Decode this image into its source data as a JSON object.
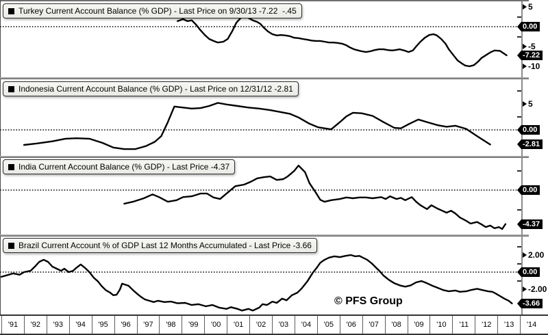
{
  "watermark": "© PFS Group",
  "colors": {
    "line": "#000000",
    "zero_line": "#000000",
    "badge_bg": "#000000",
    "badge_text": "#ffffff",
    "legend_bg": "#f0f0ec",
    "axis_line": "#8c8c8c"
  },
  "x_axis": {
    "years": [
      "'91",
      "'92",
      "'93",
      "'94",
      "'95",
      "'96",
      "'97",
      "'98",
      "'99",
      "'00",
      "'01",
      "'02",
      "'03",
      "'04",
      "'05",
      "'06",
      "'07",
      "'08",
      "'09",
      "'10",
      "'11",
      "'12",
      "'13",
      "'14"
    ]
  },
  "chart_data": [
    {
      "type": "line",
      "country": "Turkey",
      "legend": "Turkey Current Account Balance (% GDP) - Last Price on 9/30/13 -7.22  -.45",
      "last_price": -7.22,
      "last_price_date": "9/30/13",
      "ylabel": "% GDP",
      "axis_right": {
        "majors": [
          {
            "value": 5,
            "label": "5"
          },
          {
            "value": -5,
            "label": "-5"
          },
          {
            "value": -10,
            "label": "-10"
          }
        ],
        "minors": [
          2.5,
          -2.5
        ],
        "badges": [
          {
            "value": 0,
            "label": "0.00"
          },
          {
            "value": -7.22,
            "label": "-7.22"
          }
        ]
      },
      "series": [
        [
          1998.65,
          1.4
        ],
        [
          1998.9,
          1.9
        ],
        [
          1999.1,
          1.4
        ],
        [
          1999.3,
          1.6
        ],
        [
          1999.5,
          0.5
        ],
        [
          1999.7,
          -0.9
        ],
        [
          1999.9,
          -2.1
        ],
        [
          2000.1,
          -3.1
        ],
        [
          2000.3,
          -3.6
        ],
        [
          2000.5,
          -4.0
        ],
        [
          2000.75,
          -3.8
        ],
        [
          2000.95,
          -3.1
        ],
        [
          2001.15,
          -1.2
        ],
        [
          2001.35,
          1.0
        ],
        [
          2001.55,
          2.2
        ],
        [
          2001.75,
          2.8
        ],
        [
          2001.9,
          2.2
        ],
        [
          2002.1,
          1.6
        ],
        [
          2002.3,
          1.2
        ],
        [
          2002.45,
          0.7
        ],
        [
          2002.6,
          -0.2
        ],
        [
          2002.8,
          -1.2
        ],
        [
          2003.0,
          -1.9
        ],
        [
          2003.2,
          -2.2
        ],
        [
          2003.4,
          -2.1
        ],
        [
          2003.6,
          -2.2
        ],
        [
          2003.8,
          -2.4
        ],
        [
          2004.0,
          -2.8
        ],
        [
          2004.2,
          -2.9
        ],
        [
          2004.4,
          -3.1
        ],
        [
          2004.6,
          -3.3
        ],
        [
          2004.8,
          -3.5
        ],
        [
          2005.0,
          -3.6
        ],
        [
          2005.2,
          -3.6
        ],
        [
          2005.4,
          -3.8
        ],
        [
          2005.6,
          -4.0
        ],
        [
          2005.8,
          -4.0
        ],
        [
          2006.0,
          -4.1
        ],
        [
          2006.2,
          -4.3
        ],
        [
          2006.4,
          -4.7
        ],
        [
          2006.55,
          -5.2
        ],
        [
          2006.75,
          -5.7
        ],
        [
          2006.95,
          -6.0
        ],
        [
          2007.1,
          -6.2
        ],
        [
          2007.3,
          -6.4
        ],
        [
          2007.5,
          -6.2
        ],
        [
          2007.7,
          -5.9
        ],
        [
          2007.9,
          -5.7
        ],
        [
          2008.1,
          -5.7
        ],
        [
          2008.3,
          -5.9
        ],
        [
          2008.5,
          -6.0
        ],
        [
          2008.65,
          -5.9
        ],
        [
          2008.85,
          -5.7
        ],
        [
          2009.05,
          -6.0
        ],
        [
          2009.25,
          -6.4
        ],
        [
          2009.45,
          -6.0
        ],
        [
          2009.6,
          -5.0
        ],
        [
          2009.8,
          -3.8
        ],
        [
          2010.0,
          -2.8
        ],
        [
          2010.2,
          -2.1
        ],
        [
          2010.4,
          -1.9
        ],
        [
          2010.55,
          -2.2
        ],
        [
          2010.75,
          -3.1
        ],
        [
          2010.95,
          -4.3
        ],
        [
          2011.1,
          -5.7
        ],
        [
          2011.3,
          -7.1
        ],
        [
          2011.5,
          -8.5
        ],
        [
          2011.7,
          -9.3
        ],
        [
          2011.85,
          -9.8
        ],
        [
          2012.05,
          -10.0
        ],
        [
          2012.25,
          -9.7
        ],
        [
          2012.45,
          -8.8
        ],
        [
          2012.6,
          -7.9
        ],
        [
          2012.8,
          -7.2
        ],
        [
          2013.0,
          -6.5
        ],
        [
          2013.2,
          -6.0
        ],
        [
          2013.45,
          -6.1
        ],
        [
          2013.75,
          -7.22
        ]
      ]
    },
    {
      "type": "line",
      "country": "Indonesia",
      "legend": "Indonesia Current Account Balance (% GDP) - Last Price on 12/31/12 -2.81",
      "last_price": -2.81,
      "last_price_date": "12/31/12",
      "ylabel": "% GDP",
      "axis_right": {
        "majors": [
          {
            "value": 5,
            "label": "5"
          }
        ],
        "minors": [
          7.5,
          2.5
        ],
        "badges": [
          {
            "value": 0,
            "label": "0.00"
          },
          {
            "value": -2.81,
            "label": "-2.81"
          }
        ]
      },
      "series": [
        [
          1991.6,
          -2.9
        ],
        [
          1992.2,
          -2.6
        ],
        [
          1992.9,
          -2.2
        ],
        [
          1993.5,
          -1.7
        ],
        [
          1994.0,
          -1.6
        ],
        [
          1994.6,
          -1.7
        ],
        [
          1995.2,
          -2.5
        ],
        [
          1995.7,
          -3.4
        ],
        [
          1996.2,
          -3.7
        ],
        [
          1996.7,
          -3.7
        ],
        [
          1997.2,
          -3.1
        ],
        [
          1997.6,
          -2.3
        ],
        [
          1997.9,
          -1.2
        ],
        [
          1998.2,
          1.5
        ],
        [
          1998.5,
          4.5
        ],
        [
          1998.9,
          4.3
        ],
        [
          1999.3,
          4.1
        ],
        [
          1999.7,
          4.2
        ],
        [
          2000.1,
          4.6
        ],
        [
          2000.5,
          5.2
        ],
        [
          2000.9,
          4.9
        ],
        [
          2001.4,
          4.6
        ],
        [
          2001.9,
          4.3
        ],
        [
          2002.4,
          4.1
        ],
        [
          2002.9,
          3.8
        ],
        [
          2003.3,
          3.5
        ],
        [
          2003.8,
          3.1
        ],
        [
          2004.2,
          2.4
        ],
        [
          2004.7,
          1.2
        ],
        [
          2005.1,
          0.5
        ],
        [
          2005.4,
          0.3
        ],
        [
          2005.7,
          0.1
        ],
        [
          2006.1,
          1.5
        ],
        [
          2006.4,
          2.6
        ],
        [
          2006.7,
          3.3
        ],
        [
          2007.1,
          3.2
        ],
        [
          2007.6,
          2.7
        ],
        [
          2008.1,
          1.5
        ],
        [
          2008.6,
          0.4
        ],
        [
          2008.9,
          0.3
        ],
        [
          2009.3,
          1.2
        ],
        [
          2009.7,
          2.0
        ],
        [
          2010.1,
          1.5
        ],
        [
          2010.6,
          0.9
        ],
        [
          2011.0,
          0.6
        ],
        [
          2011.4,
          0.8
        ],
        [
          2011.9,
          0.2
        ],
        [
          2012.4,
          -1.2
        ],
        [
          2013.0,
          -2.81
        ]
      ]
    },
    {
      "type": "line",
      "country": "India",
      "legend": "India Current Account Balance (% GDP) - Last Price -4.37",
      "last_price": -4.37,
      "ylabel": "% GDP",
      "axis_right": {
        "majors": [],
        "minors": [
          2.5,
          -2.5
        ],
        "badges": [
          {
            "value": 0,
            "label": "0.00"
          },
          {
            "value": -4.37,
            "label": "-4.37"
          }
        ]
      },
      "series": [
        [
          1996.2,
          -1.75
        ],
        [
          1996.6,
          -1.5
        ],
        [
          1997.1,
          -1.05
        ],
        [
          1997.5,
          -0.55
        ],
        [
          1997.8,
          -0.9
        ],
        [
          1998.2,
          -1.5
        ],
        [
          1998.6,
          -1.3
        ],
        [
          1998.9,
          -0.9
        ],
        [
          1999.3,
          -0.8
        ],
        [
          1999.7,
          -0.45
        ],
        [
          2000.0,
          -0.45
        ],
        [
          2000.3,
          -0.95
        ],
        [
          2000.6,
          -1.15
        ],
        [
          2001.0,
          -0.2
        ],
        [
          2001.3,
          0.5
        ],
        [
          2001.7,
          0.7
        ],
        [
          2002.0,
          1.05
        ],
        [
          2002.3,
          1.5
        ],
        [
          2002.6,
          1.65
        ],
        [
          2002.9,
          1.75
        ],
        [
          2003.2,
          1.3
        ],
        [
          2003.5,
          1.4
        ],
        [
          2003.7,
          1.75
        ],
        [
          2004.0,
          2.45
        ],
        [
          2004.2,
          3.15
        ],
        [
          2004.5,
          2.3
        ],
        [
          2004.7,
          0.9
        ],
        [
          2005.0,
          -0.35
        ],
        [
          2005.2,
          -1.25
        ],
        [
          2005.4,
          -1.5
        ],
        [
          2005.7,
          -1.3
        ],
        [
          2006.1,
          -1.15
        ],
        [
          2006.4,
          -0.95
        ],
        [
          2006.7,
          -1.05
        ],
        [
          2007.0,
          -0.95
        ],
        [
          2007.3,
          -0.95
        ],
        [
          2007.6,
          -1.05
        ],
        [
          2008.0,
          -0.9
        ],
        [
          2008.2,
          -1.15
        ],
        [
          2008.4,
          -0.8
        ],
        [
          2008.7,
          -1.15
        ],
        [
          2008.9,
          -1.0
        ],
        [
          2009.1,
          -1.3
        ],
        [
          2009.4,
          -0.9
        ],
        [
          2009.6,
          -1.5
        ],
        [
          2009.8,
          -1.95
        ],
        [
          2010.1,
          -2.45
        ],
        [
          2010.3,
          -1.95
        ],
        [
          2010.6,
          -2.4
        ],
        [
          2010.8,
          -2.65
        ],
        [
          2011.0,
          -2.9
        ],
        [
          2011.2,
          -2.65
        ],
        [
          2011.4,
          -3.0
        ],
        [
          2011.6,
          -3.5
        ],
        [
          2011.9,
          -3.95
        ],
        [
          2012.1,
          -4.3
        ],
        [
          2012.4,
          -4.1
        ],
        [
          2012.6,
          -4.4
        ],
        [
          2012.8,
          -4.75
        ],
        [
          2013.0,
          -4.55
        ],
        [
          2013.2,
          -4.9
        ],
        [
          2013.4,
          -4.75
        ],
        [
          2013.55,
          -5.0
        ],
        [
          2013.7,
          -4.37
        ]
      ]
    },
    {
      "type": "line",
      "country": "Brazil",
      "legend": "Brazil Current Account % of GDP Last 12 Months Accumulated - Last Price -3.66",
      "last_price": -3.66,
      "ylabel": "% GDP",
      "axis_right": {
        "majors": [
          {
            "value": 2,
            "label": "2.00"
          },
          {
            "value": -2,
            "label": "-2.00"
          }
        ],
        "minors": [
          3,
          1,
          -1
        ],
        "badges": [
          {
            "value": 0,
            "label": "0.00"
          },
          {
            "value": -3.66,
            "label": "-3.66"
          }
        ]
      },
      "series": [
        [
          1990.56,
          -0.55
        ],
        [
          1990.9,
          -0.3
        ],
        [
          1991.1,
          -0.15
        ],
        [
          1991.4,
          -0.3
        ],
        [
          1991.6,
          0.0
        ],
        [
          1991.9,
          0.15
        ],
        [
          1992.1,
          0.65
        ],
        [
          1992.3,
          1.2
        ],
        [
          1992.5,
          1.45
        ],
        [
          1992.7,
          1.2
        ],
        [
          1992.9,
          0.65
        ],
        [
          1993.1,
          0.4
        ],
        [
          1993.3,
          0.15
        ],
        [
          1993.45,
          0.4
        ],
        [
          1993.65,
          0.0
        ],
        [
          1993.85,
          0.15
        ],
        [
          1994.0,
          0.5
        ],
        [
          1994.2,
          0.9
        ],
        [
          1994.4,
          0.5
        ],
        [
          1994.6,
          0.0
        ],
        [
          1994.8,
          -0.65
        ],
        [
          1995.0,
          -1.1
        ],
        [
          1995.15,
          -1.6
        ],
        [
          1995.35,
          -2.1
        ],
        [
          1995.55,
          -2.4
        ],
        [
          1995.7,
          -2.7
        ],
        [
          1995.85,
          -2.65
        ],
        [
          1996.0,
          -2.05
        ],
        [
          1996.1,
          -1.35
        ],
        [
          1996.4,
          -1.6
        ],
        [
          1996.6,
          -2.1
        ],
        [
          1996.8,
          -2.55
        ],
        [
          1997.0,
          -2.95
        ],
        [
          1997.15,
          -3.2
        ],
        [
          1997.35,
          -3.35
        ],
        [
          1997.55,
          -3.5
        ],
        [
          1997.75,
          -3.35
        ],
        [
          1998.05,
          -3.5
        ],
        [
          1998.35,
          -3.45
        ],
        [
          1998.65,
          -3.65
        ],
        [
          1999.0,
          -3.6
        ],
        [
          1999.3,
          -3.85
        ],
        [
          1999.6,
          -3.75
        ],
        [
          1999.95,
          -4.0
        ],
        [
          2000.25,
          -3.85
        ],
        [
          2000.55,
          -4.15
        ],
        [
          2000.9,
          -4.3
        ],
        [
          2001.1,
          -4.1
        ],
        [
          2001.4,
          -4.3
        ],
        [
          2001.6,
          -4.5
        ],
        [
          2001.9,
          -4.3
        ],
        [
          2002.1,
          -4.5
        ],
        [
          2002.4,
          -4.15
        ],
        [
          2002.55,
          -3.75
        ],
        [
          2002.75,
          -3.85
        ],
        [
          2003.0,
          -3.45
        ],
        [
          2003.2,
          -3.6
        ],
        [
          2003.45,
          -3.1
        ],
        [
          2003.65,
          -3.3
        ],
        [
          2003.9,
          -2.7
        ],
        [
          2004.15,
          -2.4
        ],
        [
          2004.35,
          -1.9
        ],
        [
          2004.6,
          -1.1
        ],
        [
          2004.85,
          -0.1
        ],
        [
          2005.05,
          0.55
        ],
        [
          2005.2,
          1.1
        ],
        [
          2005.4,
          1.45
        ],
        [
          2005.6,
          1.7
        ],
        [
          2005.85,
          1.85
        ],
        [
          2006.1,
          1.75
        ],
        [
          2006.35,
          1.9
        ],
        [
          2006.6,
          2.0
        ],
        [
          2006.8,
          1.85
        ],
        [
          2007.0,
          1.9
        ],
        [
          2007.15,
          1.7
        ],
        [
          2007.35,
          1.45
        ],
        [
          2007.55,
          1.05
        ],
        [
          2007.75,
          0.55
        ],
        [
          2007.95,
          0.05
        ],
        [
          2008.1,
          -0.4
        ],
        [
          2008.35,
          -0.9
        ],
        [
          2008.6,
          -1.3
        ],
        [
          2008.85,
          -1.55
        ],
        [
          2009.1,
          -1.7
        ],
        [
          2009.35,
          -1.55
        ],
        [
          2009.6,
          -1.2
        ],
        [
          2009.85,
          -1.05
        ],
        [
          2010.1,
          -1.3
        ],
        [
          2010.35,
          -1.6
        ],
        [
          2010.6,
          -1.85
        ],
        [
          2010.85,
          -2.1
        ],
        [
          2011.1,
          -2.25
        ],
        [
          2011.4,
          -2.15
        ],
        [
          2011.6,
          -2.3
        ],
        [
          2011.9,
          -2.25
        ],
        [
          2012.1,
          -2.1
        ],
        [
          2012.4,
          -1.95
        ],
        [
          2012.65,
          -2.1
        ],
        [
          2012.9,
          -2.25
        ],
        [
          2013.1,
          -2.3
        ],
        [
          2013.25,
          -2.5
        ],
        [
          2013.45,
          -2.8
        ],
        [
          2013.65,
          -3.1
        ],
        [
          2013.85,
          -3.35
        ],
        [
          2014.0,
          -3.66
        ]
      ]
    }
  ]
}
